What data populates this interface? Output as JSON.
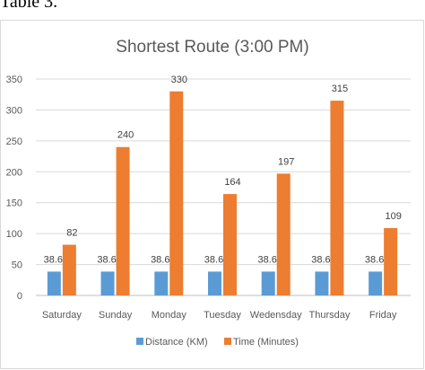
{
  "caption": "Table 3.",
  "chart_data": {
    "type": "bar",
    "title": "Shortest Route (3:00 PM)",
    "xlabel": "",
    "ylabel": "",
    "categories": [
      "Saturday",
      "Sunday",
      "Monday",
      "Tuesday",
      "Wedensday",
      "Thursday",
      "Friday"
    ],
    "series": [
      {
        "name": "Distance (KM)",
        "color": "#5b9bd5",
        "values": [
          38.6,
          38.6,
          38.6,
          38.6,
          38.6,
          38.6,
          38.6
        ],
        "labels": [
          "38.6",
          "38.6",
          "38.6",
          "38.6",
          "38.6",
          "38.6",
          "38.6"
        ]
      },
      {
        "name": "Time (Minutes)",
        "color": "#ed7d31",
        "values": [
          82,
          240,
          330,
          164,
          197,
          315,
          109
        ],
        "labels": [
          "82",
          "240",
          "330",
          "164",
          "197",
          "315",
          "109"
        ]
      }
    ],
    "ylim": [
      0,
      350
    ],
    "yticks": [
      "0",
      "50",
      "100",
      "150",
      "200",
      "250",
      "300",
      "350"
    ],
    "grid": true,
    "legend_position": "bottom"
  }
}
